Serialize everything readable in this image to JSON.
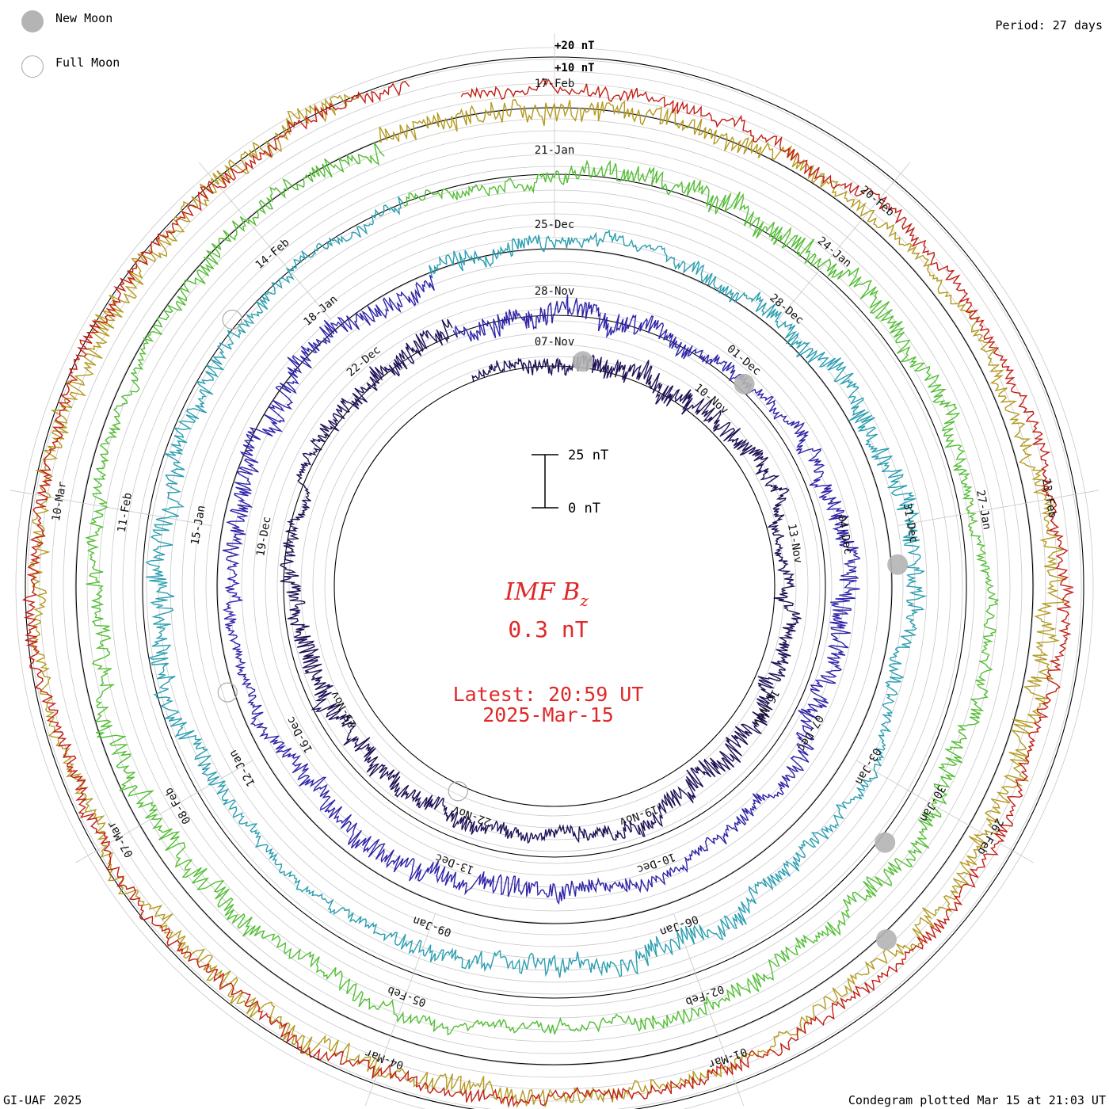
{
  "legend": {
    "new_moon": "New Moon",
    "full_moon": "Full Moon"
  },
  "period_label": "Period: 27 days",
  "footer_left": "GI-UAF 2025",
  "footer_right": "Condegram plotted Mar 15 at 21:03 UT",
  "scale_labels": {
    "plus20": "+20 nT",
    "plus10": "+10 nT"
  },
  "scale_bar": {
    "top_label": "25 nT",
    "bottom_label": "0 nT"
  },
  "center": {
    "quantity": "IMF B",
    "subscript": "z",
    "value": "0.3 nT",
    "latest": "Latest: 20:59 UT",
    "date": "2025-Mar-15"
  },
  "colors": {
    "grid": "#c8c8c8",
    "ring": "#000000",
    "title": "#e02828",
    "moon": "#b4b4b4"
  },
  "chart_data": {
    "type": "line",
    "period_days": 27,
    "unit": "nT",
    "rings": [
      {
        "start": "2024-Nov-07",
        "color": "#1e0f55",
        "tick_labels": [
          "07-Nov",
          "10-Nov",
          "13-Nov",
          "16-Nov",
          "19-Nov",
          "22-Nov",
          "25-Nov",
          "28-Nov",
          "01-Dec",
          "04-Dec"
        ]
      },
      {
        "start": "2024-Dec-04",
        "color": "#2e23a8",
        "tick_labels": [
          "28-Nov",
          "01-Dec",
          "04-Dec",
          "07-Dec",
          "10-Dec",
          "13-Dec",
          "16-Dec",
          "19-Dec",
          "22-Dec",
          "25-Dec"
        ]
      },
      {
        "start": "2024-Dec-31",
        "color": "#2a9eb0",
        "tick_labels": [
          "25-Dec",
          "28-Dec",
          "31-Dec",
          "03-Jan",
          "06-Jan",
          "09-Jan",
          "12-Jan",
          "15-Jan",
          "18-Jan",
          "21-Jan"
        ]
      },
      {
        "start": "2025-Jan-27",
        "color": "#52be34",
        "tick_labels": [
          "21-Jan",
          "24-Jan",
          "27-Jan",
          "30-Jan",
          "02-Feb",
          "05-Feb",
          "08-Feb",
          "11-Feb",
          "14-Feb",
          "17-Feb"
        ]
      },
      {
        "start": "2025-Feb-23",
        "color": "#b49a20",
        "tick_labels": [
          "17-Feb",
          "20-Feb",
          "23-Feb",
          "26-Feb",
          "01-Mar",
          "04-Mar",
          "07-Mar",
          "10-Mar"
        ]
      },
      {
        "start": "2025-Mar-15",
        "color": "#c21e14",
        "tick_labels": []
      }
    ],
    "date_labels": [
      {
        "label": "07-Nov",
        "ring": 0,
        "turn": 0.0
      },
      {
        "label": "10-Nov",
        "ring": 0,
        "turn": 0.111
      },
      {
        "label": "13-Nov",
        "ring": 0,
        "turn": 0.222
      },
      {
        "label": "16-Nov",
        "ring": 0,
        "turn": 0.333
      },
      {
        "label": "19-Nov",
        "ring": 0,
        "turn": 0.444
      },
      {
        "label": "22-Nov",
        "ring": 0,
        "turn": 0.555
      },
      {
        "label": "25-Nov",
        "ring": 0,
        "turn": 0.666
      },
      {
        "label": "28-Nov",
        "ring": 1,
        "turn": 0.0
      },
      {
        "label": "01-Dec",
        "ring": 1,
        "turn": 0.111
      },
      {
        "label": "04-Dec",
        "ring": 1,
        "turn": 0.222
      },
      {
        "label": "07-Dec",
        "ring": 1,
        "turn": 0.333
      },
      {
        "label": "10-Dec",
        "ring": 1,
        "turn": 0.444
      },
      {
        "label": "13-Dec",
        "ring": 1,
        "turn": 0.555
      },
      {
        "label": "16-Dec",
        "ring": 1,
        "turn": 0.666
      },
      {
        "label": "19-Dec",
        "ring": 1,
        "turn": 0.777
      },
      {
        "label": "22-Dec",
        "ring": 1,
        "turn": 0.888
      },
      {
        "label": "25-Dec",
        "ring": 2,
        "turn": 0.0
      },
      {
        "label": "28-Dec",
        "ring": 2,
        "turn": 0.111
      },
      {
        "label": "31-Dec",
        "ring": 2,
        "turn": 0.222
      },
      {
        "label": "03-Jan",
        "ring": 2,
        "turn": 0.333
      },
      {
        "label": "06-Jan",
        "ring": 2,
        "turn": 0.444
      },
      {
        "label": "09-Jan",
        "ring": 2,
        "turn": 0.555
      },
      {
        "label": "12-Jan",
        "ring": 2,
        "turn": 0.666
      },
      {
        "label": "15-Jan",
        "ring": 2,
        "turn": 0.777
      },
      {
        "label": "18-Jan",
        "ring": 2,
        "turn": 0.888
      },
      {
        "label": "21-Jan",
        "ring": 3,
        "turn": 0.0
      },
      {
        "label": "24-Jan",
        "ring": 3,
        "turn": 0.111
      },
      {
        "label": "27-Jan",
        "ring": 3,
        "turn": 0.222
      },
      {
        "label": "30-Jan",
        "ring": 3,
        "turn": 0.333
      },
      {
        "label": "02-Feb",
        "ring": 3,
        "turn": 0.444
      },
      {
        "label": "05-Feb",
        "ring": 3,
        "turn": 0.555
      },
      {
        "label": "08-Feb",
        "ring": 3,
        "turn": 0.666
      },
      {
        "label": "11-Feb",
        "ring": 3,
        "turn": 0.777
      },
      {
        "label": "14-Feb",
        "ring": 3,
        "turn": 0.888
      },
      {
        "label": "17-Feb",
        "ring": 4,
        "turn": 0.0
      },
      {
        "label": "20-Feb",
        "ring": 4,
        "turn": 0.111
      },
      {
        "label": "23-Feb",
        "ring": 4,
        "turn": 0.222
      },
      {
        "label": "26-Feb",
        "ring": 4,
        "turn": 0.333
      },
      {
        "label": "01-Mar",
        "ring": 4,
        "turn": 0.444
      },
      {
        "label": "04-Mar",
        "ring": 4,
        "turn": 0.555
      },
      {
        "label": "07-Mar",
        "ring": 4,
        "turn": 0.666
      },
      {
        "label": "10-Mar",
        "ring": 4,
        "turn": 0.777
      }
    ],
    "moons": [
      {
        "phase": "new",
        "ring": 0,
        "turn": 0.02
      },
      {
        "phase": "new",
        "ring": 1,
        "turn": 0.12
      },
      {
        "phase": "new",
        "ring": 2,
        "turn": 0.24
      },
      {
        "phase": "new",
        "ring": 3,
        "turn": 0.355
      },
      {
        "phase": "new",
        "ring": 4,
        "turn": 0.38
      },
      {
        "phase": "full",
        "ring": 0,
        "turn": 0.57
      },
      {
        "phase": "full",
        "ring": 2,
        "turn": 0.7
      },
      {
        "phase": "full",
        "ring": 3,
        "turn": 0.86
      }
    ],
    "latest_value_nT": 0.3
  }
}
